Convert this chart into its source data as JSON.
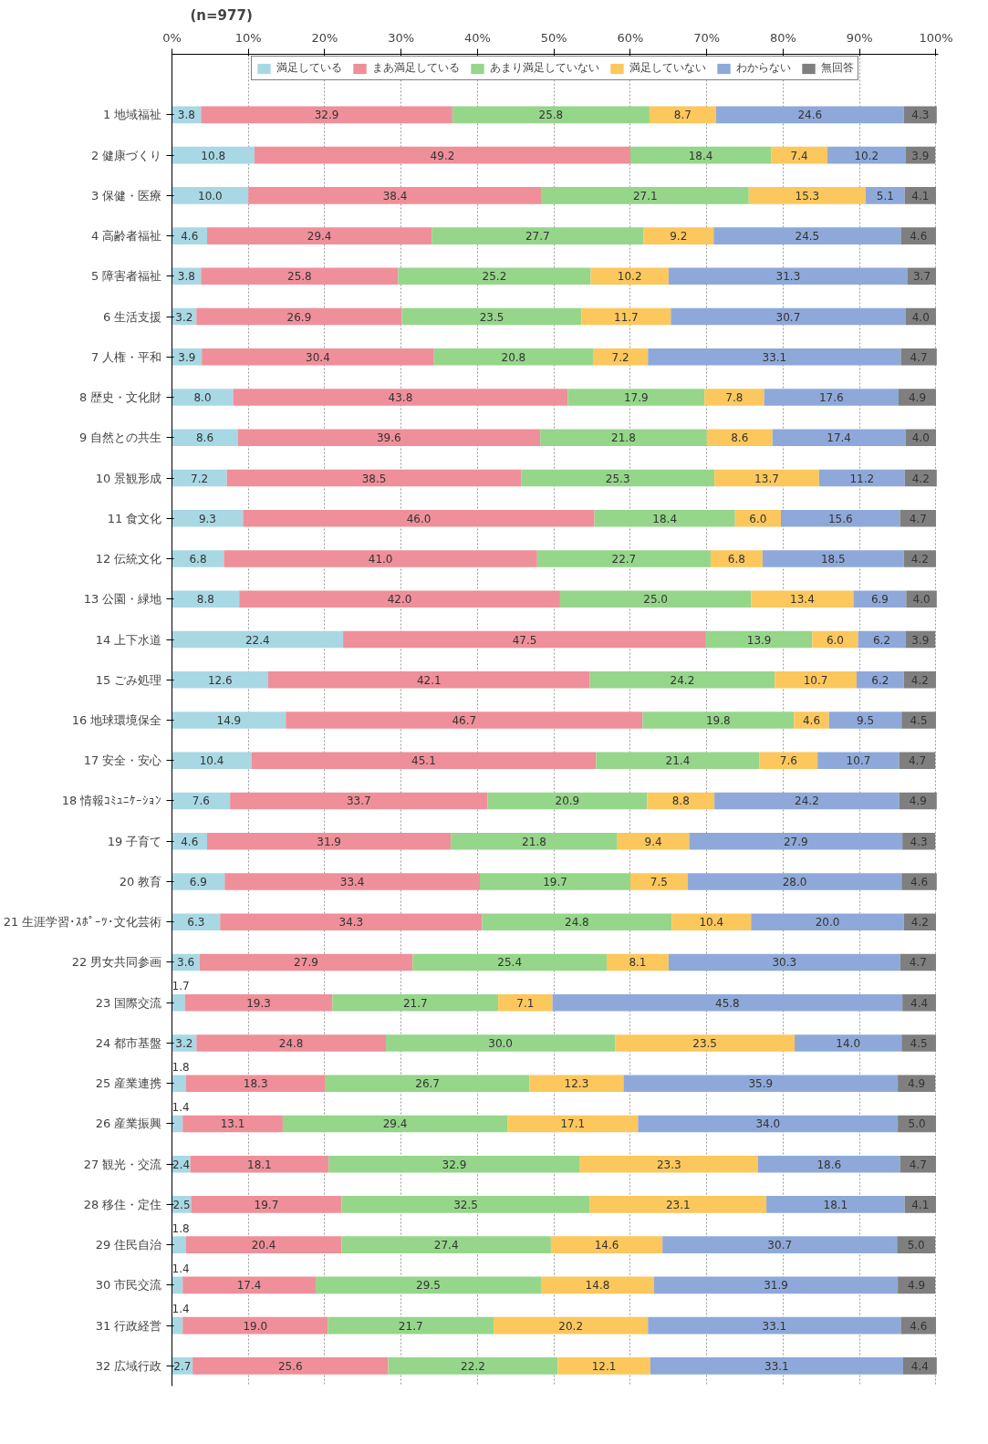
{
  "chart_data": {
    "type": "bar",
    "orientation": "horizontal",
    "stacked": true,
    "data_labels": true,
    "grid": "x",
    "legend": "top",
    "annotations": [
      "(n=977)"
    ],
    "categories": [
      "1 地域福祉",
      "2 健康づくり",
      "3 保健・医療",
      "4 高齢者福祉",
      "5 障害者福祉",
      "6 生活支援",
      "7 人権・平和",
      "8 歴史・文化財",
      "9 自然との共生",
      "10 景観形成",
      "11 食文化",
      "12 伝統文化",
      "13 公園・緑地",
      "14 上下水道",
      "15 ごみ処理",
      "16 地球環境保全",
      "17 安全・安心",
      "18 情報ｺﾐｭﾆｹｰｼｮﾝ",
      "19 子育て",
      "20 教育",
      "21 生涯学習･ｽﾎﾟｰﾂ･文化芸術",
      "22 男女共同参画",
      "23 国際交流",
      "24 都市基盤",
      "25 産業連携",
      "26 産業振興",
      "27 観光・交流",
      "28 移住・定住",
      "29 住民自治",
      "30 市民交流",
      "31 行政経営",
      "32 広域行政"
    ],
    "xlim": [
      0,
      100.3
    ],
    "xticks": [
      {
        "value": 0,
        "label": "0%"
      },
      {
        "value": 10,
        "label": "10%"
      },
      {
        "value": 20,
        "label": "20%"
      },
      {
        "value": 30,
        "label": "30%"
      },
      {
        "value": 40,
        "label": "40%"
      },
      {
        "value": 50,
        "label": "50%"
      },
      {
        "value": 60,
        "label": "60%"
      },
      {
        "value": 70,
        "label": "70%"
      },
      {
        "value": 80,
        "label": "80%"
      },
      {
        "value": 90,
        "label": "90%"
      },
      {
        "value": 100,
        "label": "100%"
      }
    ],
    "series": [
      {
        "name": "満足している",
        "color": "#a8d8e4",
        "values": [
          3.8,
          10.8,
          10.0,
          4.6,
          3.8,
          3.2,
          3.9,
          8.0,
          8.6,
          7.2,
          9.3,
          6.8,
          8.8,
          22.4,
          12.6,
          14.9,
          10.4,
          7.6,
          4.6,
          6.9,
          6.3,
          3.6,
          1.7,
          3.2,
          1.8,
          1.4,
          2.4,
          2.5,
          1.8,
          1.4,
          1.4,
          2.7
        ],
        "value_labels": [
          "3.8",
          "10.8",
          "10.0",
          "4.6",
          "3.8",
          "3.2",
          "3.9",
          "8.0",
          "8.6",
          "7.2",
          "9.3",
          "6.8",
          "8.8",
          "22.4",
          "12.6",
          "14.9",
          "10.4",
          "7.6",
          "4.6",
          "6.9",
          "6.3",
          "3.6",
          "1.7",
          "3.2",
          "1.8",
          "1.4",
          "2.4",
          "2.5",
          "1.8",
          "1.4",
          "1.4",
          "2.7"
        ]
      },
      {
        "name": "まあ満足している",
        "color": "#ef8f9a",
        "values": [
          32.9,
          49.2,
          38.4,
          29.4,
          25.8,
          26.9,
          30.4,
          43.8,
          39.6,
          38.5,
          46.0,
          41.0,
          42.0,
          47.5,
          42.1,
          46.7,
          45.1,
          33.7,
          31.9,
          33.4,
          34.3,
          27.9,
          19.3,
          24.8,
          18.3,
          13.1,
          18.1,
          19.7,
          20.4,
          17.4,
          19.0,
          25.6
        ],
        "value_labels": [
          "32.9",
          "49.2",
          "38.4",
          "29.4",
          "25.8",
          "26.9",
          "30.4",
          "43.8",
          "39.6",
          "38.5",
          "46.0",
          "41.0",
          "42.0",
          "47.5",
          "42.1",
          "46.7",
          "45.1",
          "33.7",
          "31.9",
          "33.4",
          "34.3",
          "27.9",
          "19.3",
          "24.8",
          "18.3",
          "13.1",
          "18.1",
          "19.7",
          "20.4",
          "17.4",
          "19.0",
          "25.6"
        ]
      },
      {
        "name": "あまり満足していない",
        "color": "#95d68a",
        "values": [
          25.8,
          18.4,
          27.1,
          27.7,
          25.2,
          23.5,
          20.8,
          17.9,
          21.8,
          25.3,
          18.4,
          22.7,
          25.0,
          13.9,
          24.2,
          19.8,
          21.4,
          20.9,
          21.8,
          19.7,
          24.8,
          25.4,
          21.7,
          30.0,
          26.7,
          29.4,
          32.9,
          32.5,
          27.4,
          29.5,
          21.7,
          22.2
        ],
        "value_labels": [
          "25.8",
          "18.4",
          "27.1",
          "27.7",
          "25.2",
          "23.5",
          "20.8",
          "17.9",
          "21.8",
          "25.3",
          "18.4",
          "22.7",
          "25.0",
          "13.9",
          "24.2",
          "19.8",
          "21.4",
          "20.9",
          "21.8",
          "19.7",
          "24.8",
          "25.4",
          "21.7",
          "30.0",
          "26.7",
          "29.4",
          "32.9",
          "32.5",
          "27.4",
          "29.5",
          "21.7",
          "22.2"
        ]
      },
      {
        "name": "満足していない",
        "color": "#fcc75c",
        "values": [
          8.7,
          7.4,
          15.3,
          9.2,
          10.2,
          11.7,
          7.2,
          7.8,
          8.6,
          13.7,
          6.0,
          6.8,
          13.4,
          6.0,
          10.7,
          4.6,
          7.6,
          8.8,
          9.4,
          7.5,
          10.4,
          8.1,
          7.1,
          23.5,
          12.3,
          17.1,
          23.3,
          23.1,
          14.6,
          14.8,
          20.2,
          12.1
        ],
        "value_labels": [
          "8.7",
          "7.4",
          "15.3",
          "9.2",
          "10.2",
          "11.7",
          "7.2",
          "7.8",
          "8.6",
          "13.7",
          "6.0",
          "6.8",
          "13.4",
          "6.0",
          "10.7",
          "4.6",
          "7.6",
          "8.8",
          "9.4",
          "7.5",
          "10.4",
          "8.1",
          "7.1",
          "23.5",
          "12.3",
          "17.1",
          "23.3",
          "23.1",
          "14.6",
          "14.8",
          "20.2",
          "12.1"
        ]
      },
      {
        "name": "わからない",
        "color": "#8ea9d9",
        "values": [
          24.6,
          10.2,
          5.1,
          24.5,
          31.3,
          30.7,
          33.1,
          17.6,
          17.4,
          11.2,
          15.6,
          18.5,
          6.9,
          6.2,
          6.2,
          9.5,
          10.7,
          24.2,
          27.9,
          28.0,
          20.0,
          30.3,
          45.8,
          14.0,
          35.9,
          34.0,
          18.6,
          18.1,
          30.7,
          31.9,
          33.1,
          33.1
        ],
        "value_labels": [
          "24.6",
          "10.2",
          "5.1",
          "24.5",
          "31.3",
          "30.7",
          "33.1",
          "17.6",
          "17.4",
          "11.2",
          "15.6",
          "18.5",
          "6.9",
          "6.2",
          "6.2",
          "9.5",
          "10.7",
          "24.2",
          "27.9",
          "28.0",
          "20.0",
          "30.3",
          "45.8",
          "14.0",
          "35.9",
          "34.0",
          "18.6",
          "18.1",
          "30.7",
          "31.9",
          "33.1",
          "33.1"
        ]
      },
      {
        "name": "無回答",
        "color": "#7f7f7f",
        "values": [
          4.3,
          3.9,
          4.1,
          4.6,
          3.7,
          4.0,
          4.7,
          4.9,
          4.0,
          4.2,
          4.7,
          4.2,
          4.0,
          3.9,
          4.2,
          4.5,
          4.7,
          4.9,
          4.3,
          4.6,
          4.2,
          4.7,
          4.4,
          4.5,
          4.9,
          5.0,
          4.7,
          4.1,
          5.0,
          4.9,
          4.6,
          4.4
        ],
        "value_labels": [
          "4.3",
          "3.9",
          "4.1",
          "4.6",
          "3.7",
          "4.0",
          "4.7",
          "4.9",
          "4.0",
          "4.2",
          "4.7",
          "4.2",
          "4.0",
          "3.9",
          "4.2",
          "4.5",
          "4.7",
          "4.9",
          "4.3",
          "4.6",
          "4.2",
          "4.7",
          "4.4",
          "4.5",
          "4.9",
          "5.0",
          "4.7",
          "4.1",
          "5.0",
          "4.9",
          "4.6",
          "4.4"
        ]
      }
    ]
  }
}
